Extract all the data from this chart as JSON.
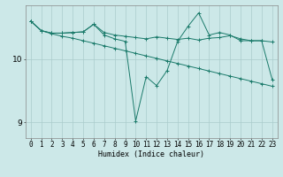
{
  "xlabel": "Humidex (Indice chaleur)",
  "background_color": "#cce8e8",
  "line_color": "#1a7a6a",
  "grid_color": "#aacccc",
  "xlim": [
    -0.5,
    23.5
  ],
  "ylim": [
    8.75,
    10.85
  ],
  "yticks": [
    9,
    10
  ],
  "xticks": [
    0,
    1,
    2,
    3,
    4,
    5,
    6,
    7,
    8,
    9,
    10,
    11,
    12,
    13,
    14,
    15,
    16,
    17,
    18,
    19,
    20,
    21,
    22,
    23
  ],
  "series1_x": [
    0,
    1,
    2,
    3,
    4,
    5,
    6,
    7,
    8,
    9,
    10,
    11,
    12,
    13,
    14,
    15,
    16,
    17,
    18,
    19,
    20,
    21,
    22,
    23
  ],
  "series1_y": [
    10.6,
    10.45,
    10.4,
    10.36,
    10.33,
    10.29,
    10.25,
    10.21,
    10.17,
    10.13,
    10.09,
    10.05,
    10.01,
    9.97,
    9.93,
    9.89,
    9.85,
    9.81,
    9.77,
    9.73,
    9.69,
    9.65,
    9.61,
    9.57
  ],
  "series2_x": [
    0,
    1,
    2,
    3,
    4,
    5,
    6,
    7,
    8,
    9,
    10,
    11,
    12,
    13,
    14,
    15,
    16,
    17,
    18,
    19,
    20,
    21,
    22,
    23
  ],
  "series2_y": [
    10.6,
    10.45,
    10.41,
    10.41,
    10.42,
    10.43,
    10.55,
    10.42,
    10.38,
    10.36,
    10.34,
    10.32,
    10.35,
    10.33,
    10.31,
    10.33,
    10.3,
    10.33,
    10.34,
    10.37,
    10.32,
    10.29,
    10.29,
    10.27
  ],
  "series3_x": [
    0,
    1,
    2,
    3,
    4,
    5,
    6,
    7,
    8,
    9,
    10,
    11,
    12,
    13,
    14,
    15,
    16,
    17,
    18,
    19,
    20,
    21,
    22,
    23
  ],
  "series3_y": [
    10.6,
    10.45,
    10.41,
    10.41,
    10.42,
    10.43,
    10.55,
    10.38,
    10.32,
    10.28,
    9.02,
    9.72,
    9.58,
    9.82,
    10.28,
    10.52,
    10.73,
    10.38,
    10.42,
    10.38,
    10.29,
    10.29,
    10.29,
    9.68
  ],
  "tick_fontsize": 5.5,
  "xlabel_fontsize": 6.0
}
